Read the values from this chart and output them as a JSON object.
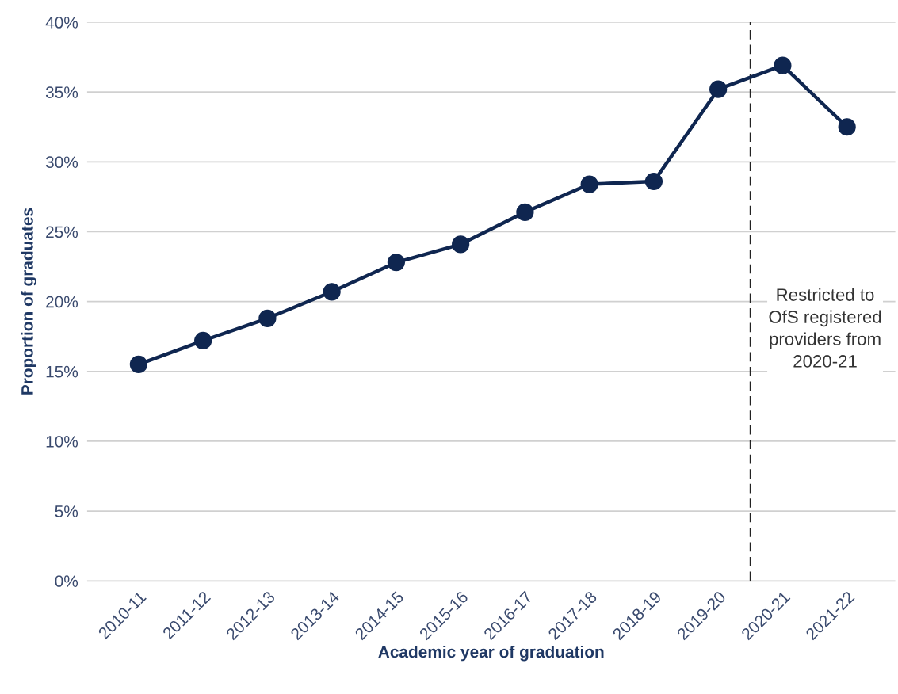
{
  "chart_data": {
    "type": "line",
    "xlabel": "Academic year of graduation",
    "ylabel": "Proportion of graduates",
    "categories": [
      "2010-11",
      "2011-12",
      "2012-13",
      "2013-14",
      "2014-15",
      "2015-16",
      "2016-17",
      "2017-18",
      "2018-19",
      "2019-20",
      "2020-21",
      "2021-22"
    ],
    "series": [
      {
        "color": "#0f2650",
        "values": [
          15.5,
          17.2,
          18.8,
          20.7,
          22.8,
          24.1,
          26.4,
          28.4,
          28.6,
          35.2,
          36.9,
          32.5
        ]
      }
    ],
    "ylim": [
      0,
      40
    ],
    "yticks": [
      {
        "value": 0,
        "label": "0%"
      },
      {
        "value": 5,
        "label": "5%"
      },
      {
        "value": 10,
        "label": "10%"
      },
      {
        "value": 15,
        "label": "15%"
      },
      {
        "value": 20,
        "label": "20%"
      },
      {
        "value": 25,
        "label": "25%"
      },
      {
        "value": 30,
        "label": "30%"
      },
      {
        "value": 35,
        "label": "35%"
      },
      {
        "value": 40,
        "label": "40%"
      }
    ],
    "ref_lines": [
      {
        "axis": "x",
        "value": "2020-21",
        "label": "Restricted to\nOfS registered\nproviders from\n2020-21",
        "color": "#222222",
        "line_style": "dashed"
      }
    ],
    "grid": "y",
    "marker": "circle",
    "line_style": "solid",
    "legend": false
  }
}
